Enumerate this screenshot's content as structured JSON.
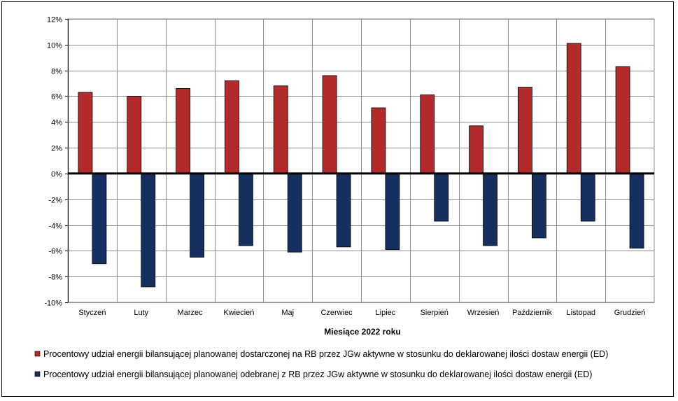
{
  "chart_data": {
    "type": "bar",
    "xlabel": "Miesiące 2022  roku",
    "categories": [
      "Styczeń",
      "Luty",
      "Marzec",
      "Kwiecień",
      "Maj",
      "Czerwiec",
      "Lipiec",
      "Sierpień",
      "Wrzesień",
      "Październik",
      "Listopad",
      "Grudzień"
    ],
    "series": [
      {
        "name": "Procentowy udział energii bilansującej planowanej dostarczonej na RB przez JGw aktywne w stosunku do deklarowanej ilości dostaw energii (ED)",
        "color": "#B22A2A",
        "values": [
          6.3,
          6.0,
          6.6,
          7.2,
          6.8,
          7.6,
          5.1,
          6.1,
          3.7,
          6.7,
          10.1,
          8.3
        ]
      },
      {
        "name": "Procentowy udział energii bilansującej planowanej odebranej z RB przez JGw aktywne w stosunku do deklarowanej ilości dostaw energii (ED)",
        "color": "#15305E",
        "values": [
          -7.0,
          -8.8,
          -6.5,
          -5.6,
          -6.1,
          -5.7,
          -5.9,
          -3.7,
          -5.6,
          -5.0,
          -3.7,
          -5.8
        ]
      }
    ],
    "ylim": [
      -10,
      12
    ],
    "yticks": [
      -10,
      -8,
      -6,
      -4,
      -2,
      0,
      2,
      4,
      6,
      8,
      10,
      12
    ],
    "ytick_labels": [
      "-10%",
      "-8%",
      "-6%",
      "-4%",
      "-2%",
      "0%",
      "2%",
      "4%",
      "6%",
      "8%",
      "10%",
      "12%"
    ],
    "grid": true,
    "legend_position": "bottom"
  }
}
